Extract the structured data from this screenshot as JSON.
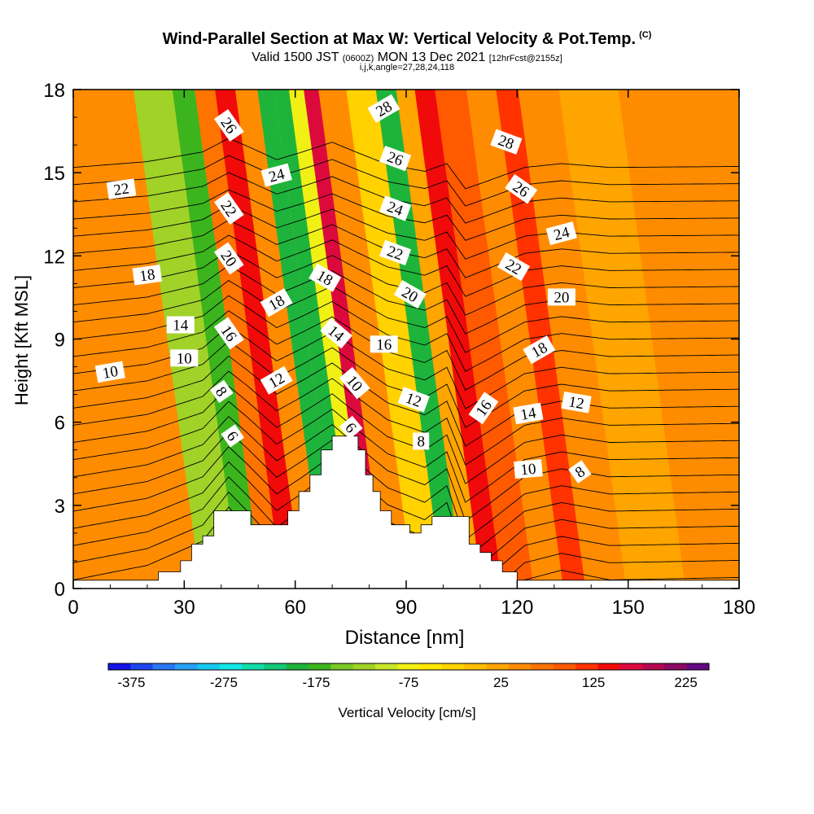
{
  "header": {
    "title": "Wind-Parallel Section at Max W: Vertical Velocity & Pot.Temp.",
    "title_suffix": "(C)",
    "valid_pre": "Valid 1500 JST",
    "valid_utc": "(0600Z)",
    "valid_post": "MON 13 Dec 2021",
    "forecast": "[12hrFcst@2155z]",
    "params": "i,j,k,angle=27,28,24,118"
  },
  "chart_data": {
    "type": "heatmap",
    "title": "Wind-Parallel Section at Max W: Vertical Velocity & Pot.Temp.",
    "xlabel": "Distance [nm]",
    "ylabel": "Height [Kft MSL]",
    "xlim": [
      0,
      180
    ],
    "ylim": [
      0,
      18
    ],
    "x_ticks": [
      0,
      30,
      60,
      90,
      120,
      150,
      180
    ],
    "y_ticks": [
      0,
      3,
      6,
      9,
      12,
      15,
      18
    ],
    "colorbar": {
      "label": "Vertical Velocity [cm/s]",
      "tick_labels": [
        "-375",
        "-275",
        "-175",
        "-75",
        "25",
        "125",
        "225"
      ],
      "tick_values": [
        -375,
        -275,
        -175,
        -75,
        25,
        125,
        225
      ],
      "min": -400,
      "max": 250,
      "colors": [
        "#1414e6",
        "#1e46f0",
        "#2878f5",
        "#28a0f5",
        "#14c8f0",
        "#14e6e6",
        "#14dcaa",
        "#14c878",
        "#1eb43c",
        "#3cb41e",
        "#78c828",
        "#a0d228",
        "#c8e628",
        "#f0f014",
        "#ffe600",
        "#ffd200",
        "#ffbe00",
        "#ffa500",
        "#ff8c00",
        "#ff7300",
        "#ff5a00",
        "#ff3200",
        "#f00a0a",
        "#dc0a3c",
        "#b40a50",
        "#8c0a64",
        "#640a82"
      ]
    },
    "velocity_bands": [
      {
        "x": 5,
        "value": 35
      },
      {
        "x": 15,
        "value": 55
      },
      {
        "x": 25,
        "value": 35
      },
      {
        "x": 40,
        "value": -115
      },
      {
        "x": 46,
        "value": -165
      },
      {
        "x": 52,
        "value": 65
      },
      {
        "x": 57,
        "value": 130
      },
      {
        "x": 63,
        "value": 40
      },
      {
        "x": 69,
        "value": -185
      },
      {
        "x": 72,
        "value": -200
      },
      {
        "x": 77,
        "value": -70
      },
      {
        "x": 80,
        "value": 160
      },
      {
        "x": 85,
        "value": 35
      },
      {
        "x": 95,
        "value": -20
      },
      {
        "x": 101,
        "value": -195
      },
      {
        "x": 106,
        "value": 15
      },
      {
        "x": 111,
        "value": 130
      },
      {
        "x": 117,
        "value": 95
      },
      {
        "x": 128,
        "value": 55
      },
      {
        "x": 133,
        "value": 110
      },
      {
        "x": 140,
        "value": 35
      },
      {
        "x": 155,
        "value": 25
      },
      {
        "x": 172,
        "value": 55
      }
    ],
    "terrain": [
      [
        0,
        0.3
      ],
      [
        23,
        0.3
      ],
      [
        23,
        0.6
      ],
      [
        29,
        0.6
      ],
      [
        29,
        1.0
      ],
      [
        32,
        1.0
      ],
      [
        32,
        1.6
      ],
      [
        35,
        1.6
      ],
      [
        35,
        1.9
      ],
      [
        38,
        1.9
      ],
      [
        38,
        2.8
      ],
      [
        48,
        2.8
      ],
      [
        48,
        2.3
      ],
      [
        58,
        2.3
      ],
      [
        58,
        2.8
      ],
      [
        61,
        2.8
      ],
      [
        61,
        3.5
      ],
      [
        64,
        3.5
      ],
      [
        64,
        4.1
      ],
      [
        67,
        4.1
      ],
      [
        67,
        5.0
      ],
      [
        70,
        5.0
      ],
      [
        70,
        5.5
      ],
      [
        77,
        5.5
      ],
      [
        77,
        5.0
      ],
      [
        79,
        5.0
      ],
      [
        79,
        4.1
      ],
      [
        81,
        4.1
      ],
      [
        81,
        3.5
      ],
      [
        83,
        3.5
      ],
      [
        83,
        2.8
      ],
      [
        86,
        2.8
      ],
      [
        86,
        2.3
      ],
      [
        91,
        2.3
      ],
      [
        91,
        2.0
      ],
      [
        94,
        2.0
      ],
      [
        94,
        2.3
      ],
      [
        97,
        2.3
      ],
      [
        97,
        2.6
      ],
      [
        107,
        2.6
      ],
      [
        107,
        1.6
      ],
      [
        110,
        1.6
      ],
      [
        110,
        1.3
      ],
      [
        113,
        1.3
      ],
      [
        113,
        1.0
      ],
      [
        116,
        1.0
      ],
      [
        116,
        0.6
      ],
      [
        120,
        0.6
      ],
      [
        120,
        0.3
      ],
      [
        180,
        0.3
      ]
    ],
    "theta_contours": [
      5,
      6,
      7,
      8,
      9,
      10,
      11,
      12,
      13,
      14,
      15,
      16,
      17,
      18,
      19,
      20,
      21,
      22,
      23,
      24,
      25,
      26,
      27,
      28,
      29
    ],
    "contour_labels": [
      {
        "text": "22",
        "x": 13,
        "y": 14.4,
        "rot": -8
      },
      {
        "text": "18",
        "x": 20,
        "y": 11.3,
        "rot": -8
      },
      {
        "text": "14",
        "x": 29,
        "y": 9.5,
        "rot": 0
      },
      {
        "text": "10",
        "x": 30,
        "y": 8.3,
        "rot": 0
      },
      {
        "text": "10",
        "x": 10,
        "y": 7.8,
        "rot": -10
      },
      {
        "text": "26",
        "x": 42,
        "y": 16.7,
        "rot": 55
      },
      {
        "text": "22",
        "x": 42,
        "y": 13.7,
        "rot": 55
      },
      {
        "text": "20",
        "x": 42,
        "y": 11.9,
        "rot": 55
      },
      {
        "text": "16",
        "x": 42,
        "y": 9.2,
        "rot": 55
      },
      {
        "text": "8",
        "x": 40,
        "y": 7.1,
        "rot": 55
      },
      {
        "text": "6",
        "x": 43,
        "y": 5.5,
        "rot": 55
      },
      {
        "text": "24",
        "x": 55,
        "y": 14.9,
        "rot": -15
      },
      {
        "text": "18",
        "x": 55,
        "y": 10.3,
        "rot": -30
      },
      {
        "text": "12",
        "x": 55,
        "y": 7.5,
        "rot": -30
      },
      {
        "text": "18",
        "x": 68,
        "y": 11.2,
        "rot": 30
      },
      {
        "text": "14",
        "x": 71,
        "y": 9.2,
        "rot": 40
      },
      {
        "text": "10",
        "x": 76,
        "y": 7.4,
        "rot": 50
      },
      {
        "text": "6",
        "x": 75,
        "y": 5.8,
        "rot": 50
      },
      {
        "text": "28",
        "x": 84,
        "y": 17.3,
        "rot": -30
      },
      {
        "text": "26",
        "x": 87,
        "y": 15.5,
        "rot": 20
      },
      {
        "text": "24",
        "x": 87,
        "y": 13.7,
        "rot": 20
      },
      {
        "text": "22",
        "x": 87,
        "y": 12.1,
        "rot": 20
      },
      {
        "text": "20",
        "x": 91,
        "y": 10.6,
        "rot": 30
      },
      {
        "text": "16",
        "x": 84,
        "y": 8.8,
        "rot": 0
      },
      {
        "text": "12",
        "x": 92,
        "y": 6.8,
        "rot": 20
      },
      {
        "text": "8",
        "x": 94,
        "y": 5.3,
        "rot": 0
      },
      {
        "text": "28",
        "x": 117,
        "y": 16.1,
        "rot": 20
      },
      {
        "text": "26",
        "x": 121,
        "y": 14.4,
        "rot": 35
      },
      {
        "text": "24",
        "x": 132,
        "y": 12.8,
        "rot": -15
      },
      {
        "text": "22",
        "x": 119,
        "y": 11.6,
        "rot": 30
      },
      {
        "text": "20",
        "x": 132,
        "y": 10.5,
        "rot": 0
      },
      {
        "text": "18",
        "x": 126,
        "y": 8.6,
        "rot": -30
      },
      {
        "text": "16",
        "x": 111,
        "y": 6.5,
        "rot": -55
      },
      {
        "text": "14",
        "x": 123,
        "y": 6.3,
        "rot": -10
      },
      {
        "text": "12",
        "x": 136,
        "y": 6.7,
        "rot": 10
      },
      {
        "text": "10",
        "x": 123,
        "y": 4.3,
        "rot": -5
      },
      {
        "text": "8",
        "x": 137,
        "y": 4.2,
        "rot": -35
      }
    ]
  }
}
